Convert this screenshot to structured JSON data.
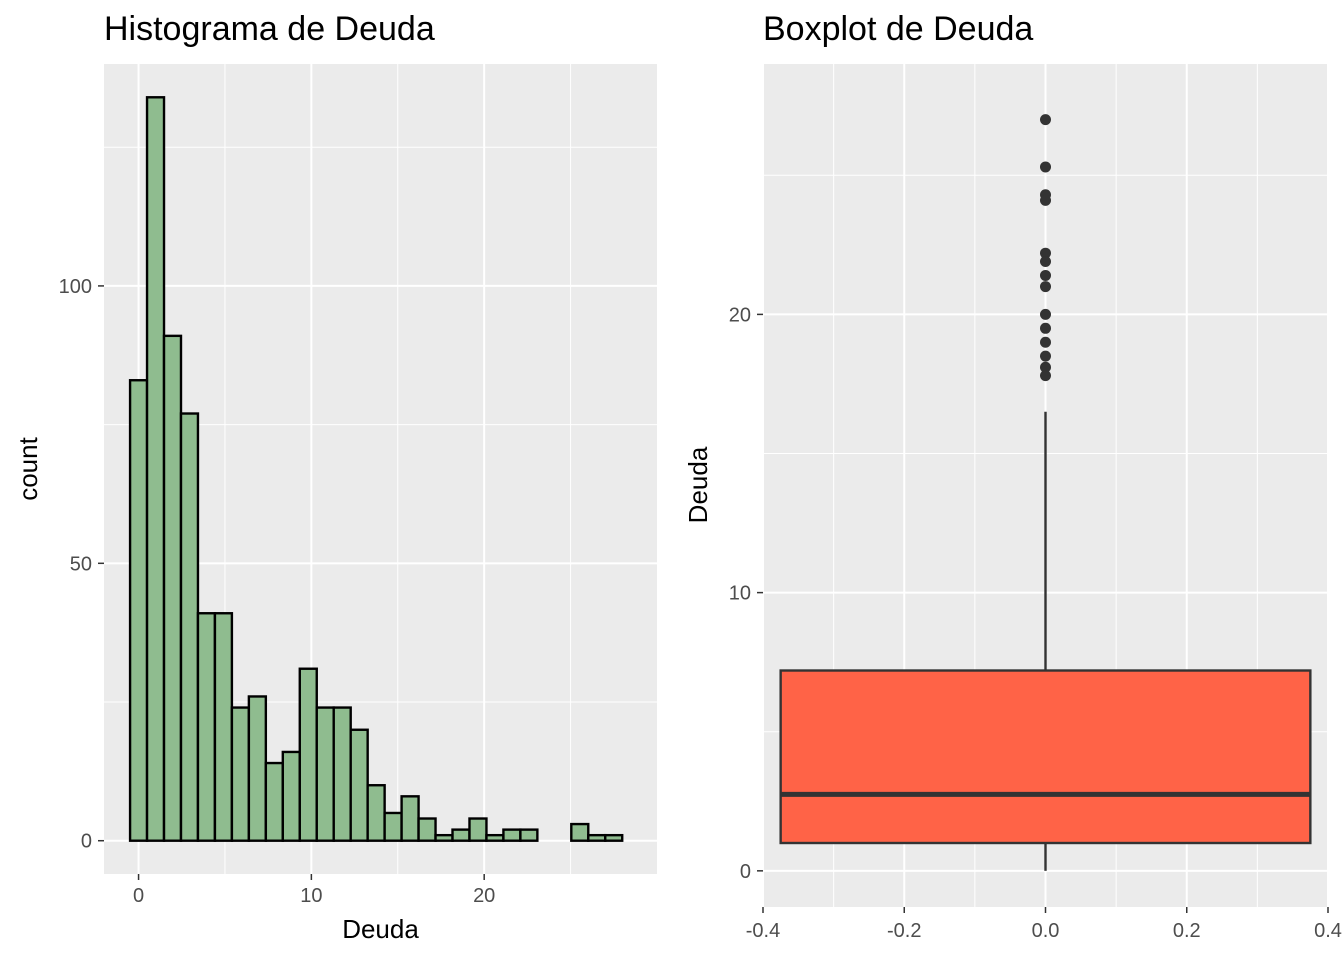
{
  "chart_data": [
    {
      "type": "bar",
      "title": "Histograma de Deuda",
      "xlabel": "Deuda",
      "ylabel": "count",
      "xlim": [
        -2,
        30
      ],
      "ylim": [
        -6,
        140
      ],
      "x_ticks": [
        0,
        10,
        20
      ],
      "y_ticks": [
        0,
        50,
        100
      ],
      "grid": true,
      "bar_fill": "#8fbc8f",
      "bar_stroke": "#000000",
      "bin_width": 0.982,
      "bin_centers": [
        0,
        0.982,
        1.964,
        2.946,
        3.928,
        4.91,
        5.892,
        6.874,
        7.856,
        8.838,
        9.82,
        10.802,
        11.784,
        12.766,
        13.748,
        14.73,
        15.712,
        16.694,
        17.676,
        18.658,
        19.64,
        20.622,
        21.604,
        22.586,
        23.568,
        24.55,
        25.532,
        26.514,
        27.496
      ],
      "values": [
        83,
        134,
        91,
        77,
        41,
        41,
        24,
        26,
        14,
        16,
        31,
        24,
        24,
        20,
        10,
        5,
        8,
        4,
        1,
        2,
        4,
        1,
        2,
        2,
        0,
        0,
        3,
        1,
        1
      ]
    },
    {
      "type": "boxplot",
      "title": "Boxplot de Deuda",
      "xlabel": "",
      "ylabel": "Deuda",
      "xlim": [
        -0.4,
        0.4
      ],
      "ylim": [
        -1.3,
        29
      ],
      "x_ticks": [
        -0.4,
        -0.2,
        0.0,
        0.2,
        0.4
      ],
      "x_tick_labels": [
        "-0.4",
        "-0.2",
        "0.0",
        "0.2",
        "0.4"
      ],
      "y_ticks": [
        0,
        10,
        20
      ],
      "grid": true,
      "box_fill": "#ff6347",
      "box_stroke": "#333333",
      "box": {
        "x_center": 0,
        "width": 0.75,
        "lower_whisker": 0,
        "q1": 1.0,
        "median": 2.75,
        "q3": 7.2,
        "upper_whisker": 16.5
      },
      "outliers": [
        27.0,
        25.3,
        24.3,
        24.1,
        22.2,
        21.9,
        21.4,
        21.0,
        20.0,
        19.5,
        19.0,
        18.5,
        18.1,
        17.8
      ]
    }
  ]
}
